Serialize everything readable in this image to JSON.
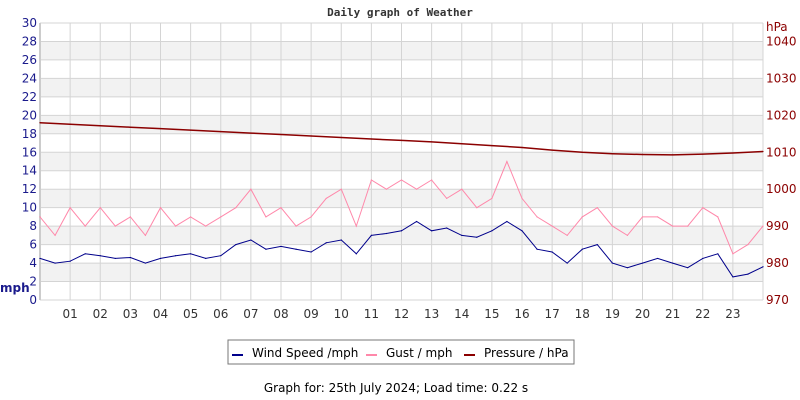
{
  "chart_data": {
    "type": "line",
    "title": "Daily graph of Weather",
    "ylabel_left": "mph",
    "ylabel_right": "hPa",
    "ylim_left": [
      0,
      30
    ],
    "ylim_right": [
      970,
      1045
    ],
    "left_ticks": [
      "0",
      "2",
      "4",
      "6",
      "8",
      "10",
      "12",
      "14",
      "16",
      "18",
      "20",
      "22",
      "24",
      "26",
      "28",
      "30"
    ],
    "right_ticks": [
      "970",
      "980",
      "990",
      "1000",
      "1010",
      "1020",
      "1030",
      "1040"
    ],
    "x_ticks": [
      "01",
      "02",
      "03",
      "04",
      "05",
      "06",
      "07",
      "08",
      "09",
      "10",
      "11",
      "12",
      "13",
      "14",
      "15",
      "16",
      "17",
      "18",
      "19",
      "20",
      "21",
      "22",
      "23"
    ],
    "x_range_hours": [
      0,
      24
    ],
    "grid": true,
    "legend_position": "bottom",
    "series": [
      {
        "name": "Wind Speed /mph",
        "color": "#00008b",
        "axis": "left",
        "step_hours": 0.5,
        "values": [
          4.5,
          4,
          4.2,
          5,
          4.8,
          4.5,
          4.6,
          4,
          4.5,
          4.8,
          5,
          4.5,
          4.8,
          6,
          6.5,
          5.5,
          5.8,
          5.5,
          5.2,
          6.2,
          6.5,
          5,
          7,
          7.2,
          7.5,
          8.5,
          7.5,
          7.8,
          7,
          6.8,
          7.5,
          8.5,
          7.5,
          5.5,
          5.2,
          4,
          5.5,
          6,
          4,
          3.5,
          4,
          4.5,
          4,
          3.5,
          4.5,
          5,
          2.5,
          2.8,
          3.6
        ]
      },
      {
        "name": "Gust / mph",
        "color": "#ff88aa",
        "axis": "left",
        "step_hours": 0.5,
        "values": [
          9,
          7,
          10,
          8,
          10,
          8,
          9,
          7,
          10,
          8,
          9,
          8,
          9,
          10,
          12,
          9,
          10,
          8,
          9,
          11,
          12,
          8,
          13,
          12,
          13,
          12,
          13,
          11,
          12,
          10,
          11,
          15,
          11,
          9,
          8,
          7,
          9,
          10,
          8,
          7,
          9,
          9,
          8,
          8,
          10,
          9,
          5,
          6,
          8
        ]
      },
      {
        "name": "Pressure / hPa",
        "color": "#8b0000",
        "axis": "right",
        "step_hours": 1,
        "values": [
          1018.0,
          1017.6,
          1017.2,
          1016.8,
          1016.4,
          1016.0,
          1015.6,
          1015.2,
          1014.8,
          1014.4,
          1014.0,
          1013.6,
          1013.2,
          1012.8,
          1012.3,
          1011.8,
          1011.3,
          1010.6,
          1010.0,
          1009.6,
          1009.4,
          1009.3,
          1009.5,
          1009.8,
          1010.2
        ]
      }
    ]
  },
  "footer": "Graph for: 25th July 2024; Load time: 0.22 s"
}
